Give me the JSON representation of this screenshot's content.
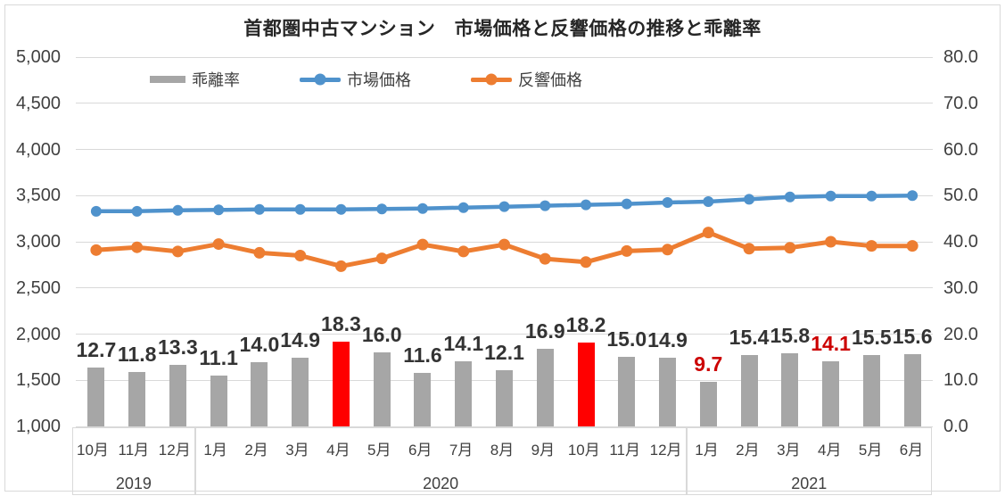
{
  "title": "首都圏中古マンション　市場価格と反響価格の推移と乖離率",
  "legend": [
    {
      "label": "乖離率",
      "type": "bar",
      "color": "#a6a6a6"
    },
    {
      "label": "市場価格",
      "type": "line",
      "color": "#4f92cc"
    },
    {
      "label": "反響価格",
      "type": "line",
      "color": "#ed7d31"
    }
  ],
  "colors": {
    "bar_gray": "#a6a6a6",
    "bar_red": "#ff0000",
    "label_dark": "#333333",
    "label_red": "#cc0000",
    "line_blue": "#4f92cc",
    "line_orange": "#ed7d31",
    "grid": "#d9d9d9",
    "axis_text": "#404040"
  },
  "chart_data": {
    "type": "combo-bar-line",
    "title": "首都圏中古マンション　市場価格と反響価格の推移と乖離率",
    "categories": [
      "10月",
      "11月",
      "12月",
      "1月",
      "2月",
      "3月",
      "4月",
      "5月",
      "6月",
      "7月",
      "8月",
      "9月",
      "10月",
      "11月",
      "12月",
      "1月",
      "2月",
      "3月",
      "4月",
      "5月",
      "6月"
    ],
    "year_groups": [
      {
        "label": "2019",
        "span": 3
      },
      {
        "label": "2020",
        "span": 12
      },
      {
        "label": "2021",
        "span": 6
      }
    ],
    "left_axis": {
      "min": 1000,
      "max": 5000,
      "step": 500,
      "ticks": [
        "5,000",
        "4,500",
        "4,000",
        "3,500",
        "3,000",
        "2,500",
        "2,000",
        "1,500",
        "1,000"
      ]
    },
    "right_axis": {
      "min": 0,
      "max": 80,
      "step": 10,
      "ticks": [
        "80.0",
        "70.0",
        "60.0",
        "50.0",
        "40.0",
        "30.0",
        "20.0",
        "10.0",
        "0.0"
      ]
    },
    "grid": true,
    "legend_position": "top",
    "series": [
      {
        "name": "乖離率",
        "type": "bar",
        "axis": "right",
        "unit": "%",
        "values": [
          12.7,
          11.8,
          13.3,
          11.1,
          14.0,
          14.9,
          18.3,
          16.0,
          11.6,
          14.1,
          12.1,
          16.9,
          18.2,
          15.0,
          14.9,
          9.7,
          15.4,
          15.8,
          14.1,
          15.5,
          15.6
        ],
        "highlight_bar_indexes": [
          6,
          12
        ],
        "highlight_label_indexes": [
          15,
          18
        ]
      },
      {
        "name": "市場価格",
        "type": "line",
        "axis": "left",
        "values": [
          3330,
          3330,
          3340,
          3345,
          3350,
          3350,
          3350,
          3355,
          3360,
          3370,
          3380,
          3390,
          3400,
          3410,
          3425,
          3435,
          3460,
          3485,
          3495,
          3495,
          3500
        ]
      },
      {
        "name": "反響価格",
        "type": "line",
        "axis": "left",
        "values": [
          2910,
          2940,
          2895,
          2975,
          2880,
          2850,
          2735,
          2820,
          2970,
          2895,
          2970,
          2815,
          2780,
          2900,
          2915,
          3100,
          2925,
          2935,
          3000,
          2955,
          2955
        ]
      }
    ]
  }
}
